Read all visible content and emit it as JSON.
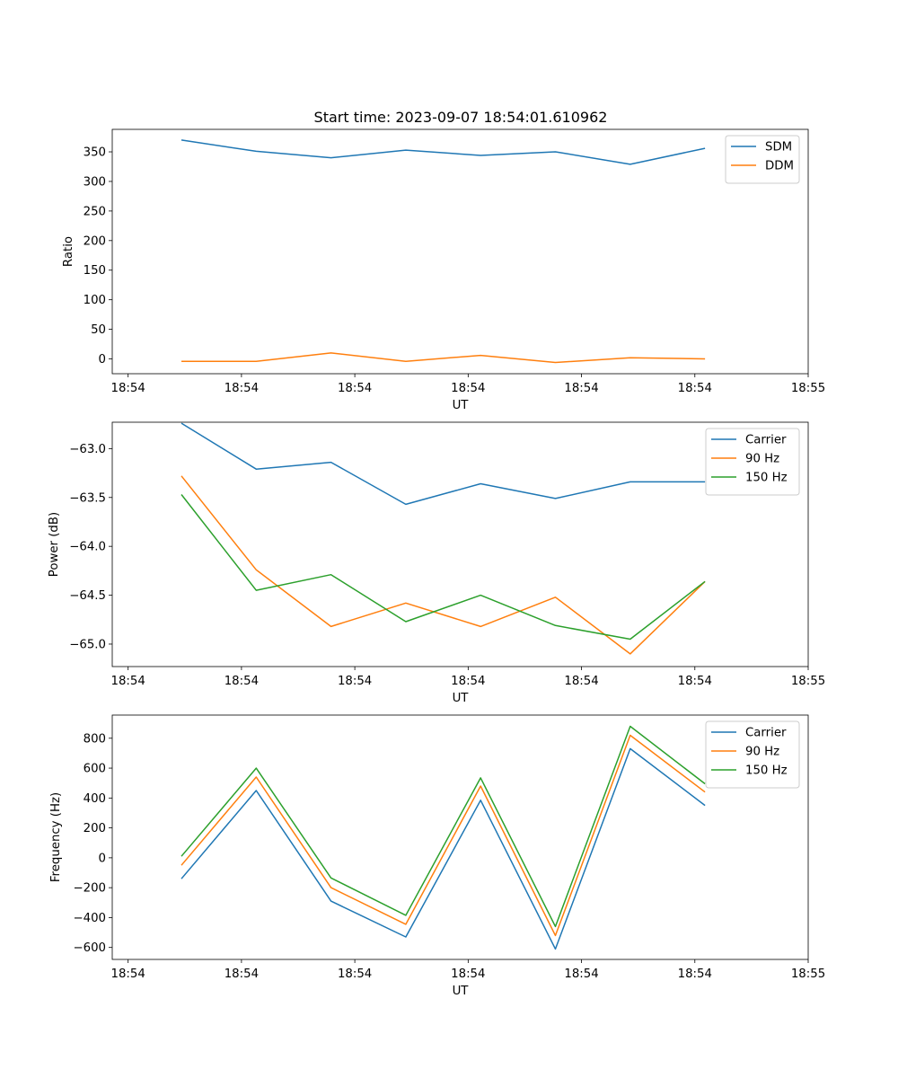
{
  "title": "Start time: 2023-09-07 18:54:01.610962",
  "chart_data": [
    {
      "type": "line",
      "title": "Start time: 2023-09-07 18:54:01.610962",
      "xlabel": "UT",
      "ylabel": "Ratio",
      "x_tick_labels": [
        "18:54",
        "18:54",
        "18:54",
        "18:54",
        "18:54",
        "18:54",
        "18:55"
      ],
      "x_tick_values": [
        0,
        1,
        2,
        3,
        4,
        5,
        6
      ],
      "xlim": [
        -0.14,
        6.0
      ],
      "yticks": [
        0,
        50,
        100,
        150,
        200,
        250,
        300,
        350
      ],
      "ylim": [
        -25,
        388
      ],
      "x": [
        0.47,
        1.13,
        1.79,
        2.45,
        3.11,
        3.77,
        4.43,
        5.09
      ],
      "series": [
        {
          "name": "SDM",
          "color": "#1f77b4",
          "values": [
            370,
            351,
            340,
            353,
            344,
            350,
            329,
            356
          ]
        },
        {
          "name": "DDM",
          "color": "#ff7f0e",
          "values": [
            -4,
            -4,
            10,
            -4,
            6,
            -6,
            2,
            0
          ]
        }
      ],
      "legend": "top-right"
    },
    {
      "type": "line",
      "xlabel": "UT",
      "ylabel": "Power (dB)",
      "x_tick_labels": [
        "18:54",
        "18:54",
        "18:54",
        "18:54",
        "18:54",
        "18:54",
        "18:55"
      ],
      "x_tick_values": [
        0,
        1,
        2,
        3,
        4,
        5,
        6
      ],
      "xlim": [
        -0.14,
        6.0
      ],
      "yticks": [
        -63.0,
        -63.5,
        -64.0,
        -64.5,
        -65.0
      ],
      "ytick_labels": [
        "−63.0",
        "−63.5",
        "−64.0",
        "−64.5",
        "−65.0"
      ],
      "ylim": [
        -65.23,
        -62.73
      ],
      "x": [
        0.47,
        1.13,
        1.79,
        2.45,
        3.11,
        3.77,
        4.43,
        5.09
      ],
      "series": [
        {
          "name": "Carrier",
          "color": "#1f77b4",
          "values": [
            -62.74,
            -63.21,
            -63.14,
            -63.57,
            -63.36,
            -63.51,
            -63.34,
            -63.34
          ]
        },
        {
          "name": "90 Hz",
          "color": "#ff7f0e",
          "values": [
            -63.28,
            -64.24,
            -64.82,
            -64.58,
            -64.82,
            -64.52,
            -65.1,
            -64.36
          ]
        },
        {
          "name": "150 Hz",
          "color": "#2ca02c",
          "values": [
            -63.47,
            -64.45,
            -64.29,
            -64.77,
            -64.5,
            -64.81,
            -64.95,
            -64.36
          ]
        }
      ],
      "legend": "top-right"
    },
    {
      "type": "line",
      "xlabel": "UT",
      "ylabel": "Frequency (Hz)",
      "x_tick_labels": [
        "18:54",
        "18:54",
        "18:54",
        "18:54",
        "18:54",
        "18:54",
        "18:55"
      ],
      "x_tick_values": [
        0,
        1,
        2,
        3,
        4,
        5,
        6
      ],
      "xlim": [
        -0.14,
        6.0
      ],
      "yticks": [
        -600,
        -400,
        -200,
        0,
        200,
        400,
        600,
        800
      ],
      "ytick_labels": [
        "−600",
        "−400",
        "−200",
        "0",
        "200",
        "400",
        "600",
        "800"
      ],
      "ylim": [
        -680,
        955
      ],
      "x": [
        0.47,
        1.13,
        1.79,
        2.45,
        3.11,
        3.77,
        4.43,
        5.09
      ],
      "series": [
        {
          "name": "Carrier",
          "color": "#1f77b4",
          "values": [
            -140,
            450,
            -290,
            -530,
            385,
            -610,
            730,
            350
          ]
        },
        {
          "name": "90 Hz",
          "color": "#ff7f0e",
          "values": [
            -50,
            540,
            -200,
            -445,
            480,
            -520,
            820,
            440
          ]
        },
        {
          "name": "150 Hz",
          "color": "#2ca02c",
          "values": [
            10,
            600,
            -135,
            -385,
            535,
            -460,
            880,
            495
          ]
        }
      ],
      "legend": "top-right"
    }
  ]
}
